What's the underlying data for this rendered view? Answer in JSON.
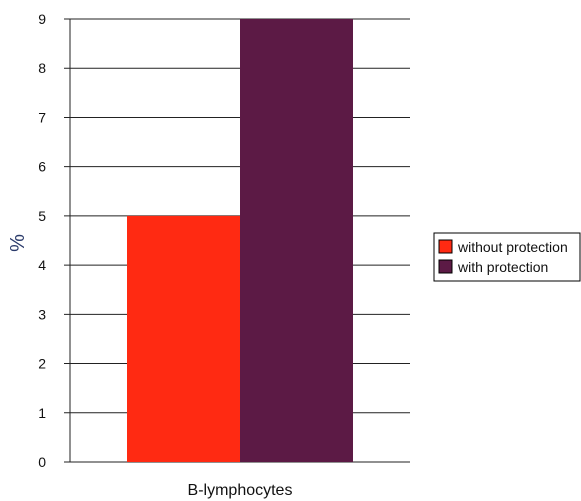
{
  "chart_data": {
    "type": "bar",
    "categories": [
      "B-lymphocytes"
    ],
    "series": [
      {
        "name": "without protection",
        "values": [
          5
        ],
        "color": "#ff2a12"
      },
      {
        "name": "with protection",
        "values": [
          9
        ],
        "color": "#5c1a45"
      }
    ],
    "ylabel": "%",
    "xlabel": "",
    "ylim": [
      0,
      9
    ],
    "yticks": [
      "0",
      "1",
      "2",
      "3",
      "4",
      "5",
      "6",
      "7",
      "8",
      "9"
    ],
    "grid": true,
    "legend_position": "right"
  }
}
